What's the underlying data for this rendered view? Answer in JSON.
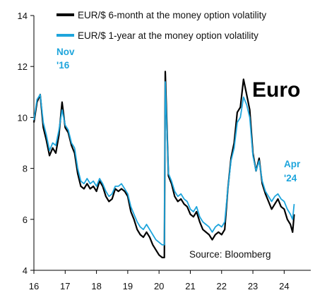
{
  "chart_data": {
    "type": "line",
    "title": "",
    "xlabel": "",
    "ylabel": "",
    "xlim": [
      2016,
      2024.85
    ],
    "ylim": [
      4,
      14
    ],
    "x_ticks": [
      {
        "value": 2016,
        "label": "16"
      },
      {
        "value": 2017,
        "label": "17"
      },
      {
        "value": 2018,
        "label": "18"
      },
      {
        "value": 2019,
        "label": "19"
      },
      {
        "value": 2020,
        "label": "20"
      },
      {
        "value": 2021,
        "label": "21"
      },
      {
        "value": 2022,
        "label": "22"
      },
      {
        "value": 2023,
        "label": "23"
      },
      {
        "value": 2024,
        "label": "24"
      }
    ],
    "y_ticks": [
      4,
      6,
      8,
      10,
      12,
      14
    ],
    "grid": false,
    "legend_position": "top",
    "series": [
      {
        "name": "EUR/$ 6-month at the money option volatility",
        "color": "#000000",
        "points": [
          [
            2016.0,
            9.8
          ],
          [
            2016.1,
            10.6
          ],
          [
            2016.2,
            10.9
          ],
          [
            2016.3,
            9.6
          ],
          [
            2016.4,
            9.1
          ],
          [
            2016.5,
            8.5
          ],
          [
            2016.6,
            8.8
          ],
          [
            2016.7,
            8.6
          ],
          [
            2016.8,
            9.3
          ],
          [
            2016.9,
            10.6
          ],
          [
            2017.0,
            9.6
          ],
          [
            2017.1,
            9.4
          ],
          [
            2017.2,
            8.9
          ],
          [
            2017.3,
            8.6
          ],
          [
            2017.4,
            7.8
          ],
          [
            2017.5,
            7.3
          ],
          [
            2017.6,
            7.2
          ],
          [
            2017.7,
            7.4
          ],
          [
            2017.8,
            7.2
          ],
          [
            2017.9,
            7.3
          ],
          [
            2018.0,
            7.1
          ],
          [
            2018.1,
            7.5
          ],
          [
            2018.2,
            7.3
          ],
          [
            2018.3,
            6.9
          ],
          [
            2018.4,
            6.7
          ],
          [
            2018.5,
            6.8
          ],
          [
            2018.6,
            7.2
          ],
          [
            2018.7,
            7.1
          ],
          [
            2018.8,
            7.2
          ],
          [
            2018.9,
            7.1
          ],
          [
            2019.0,
            6.9
          ],
          [
            2019.1,
            6.3
          ],
          [
            2019.2,
            6.0
          ],
          [
            2019.3,
            5.6
          ],
          [
            2019.4,
            5.4
          ],
          [
            2019.5,
            5.3
          ],
          [
            2019.6,
            5.5
          ],
          [
            2019.7,
            5.3
          ],
          [
            2019.8,
            5.0
          ],
          [
            2019.9,
            4.8
          ],
          [
            2020.0,
            4.6
          ],
          [
            2020.1,
            4.5
          ],
          [
            2020.17,
            4.5
          ],
          [
            2020.2,
            11.8
          ],
          [
            2020.25,
            9.8
          ],
          [
            2020.3,
            7.7
          ],
          [
            2020.4,
            7.4
          ],
          [
            2020.5,
            6.9
          ],
          [
            2020.6,
            6.7
          ],
          [
            2020.7,
            6.8
          ],
          [
            2020.8,
            6.6
          ],
          [
            2020.9,
            6.5
          ],
          [
            2021.0,
            6.2
          ],
          [
            2021.1,
            6.1
          ],
          [
            2021.2,
            6.3
          ],
          [
            2021.3,
            5.9
          ],
          [
            2021.4,
            5.6
          ],
          [
            2021.5,
            5.5
          ],
          [
            2021.6,
            5.4
          ],
          [
            2021.7,
            5.2
          ],
          [
            2021.8,
            5.4
          ],
          [
            2021.9,
            5.5
          ],
          [
            2022.0,
            5.4
          ],
          [
            2022.1,
            5.6
          ],
          [
            2022.2,
            7.2
          ],
          [
            2022.3,
            8.4
          ],
          [
            2022.4,
            9.0
          ],
          [
            2022.5,
            10.2
          ],
          [
            2022.6,
            10.4
          ],
          [
            2022.7,
            11.5
          ],
          [
            2022.8,
            10.9
          ],
          [
            2022.9,
            10.3
          ],
          [
            2023.0,
            8.6
          ],
          [
            2023.1,
            7.9
          ],
          [
            2023.2,
            8.4
          ],
          [
            2023.3,
            7.4
          ],
          [
            2023.4,
            7.0
          ],
          [
            2023.5,
            6.7
          ],
          [
            2023.6,
            6.4
          ],
          [
            2023.7,
            6.6
          ],
          [
            2023.8,
            6.8
          ],
          [
            2023.9,
            6.5
          ],
          [
            2024.0,
            6.4
          ],
          [
            2024.1,
            6.0
          ],
          [
            2024.2,
            5.8
          ],
          [
            2024.27,
            5.5
          ],
          [
            2024.32,
            6.2
          ]
        ]
      },
      {
        "name": "EUR/$ 1-year at the money option volatility",
        "color": "#1ea5dc",
        "points": [
          [
            2016.0,
            9.9
          ],
          [
            2016.1,
            10.7
          ],
          [
            2016.2,
            10.9
          ],
          [
            2016.3,
            9.8
          ],
          [
            2016.4,
            9.3
          ],
          [
            2016.5,
            8.7
          ],
          [
            2016.6,
            9.0
          ],
          [
            2016.7,
            8.9
          ],
          [
            2016.8,
            9.5
          ],
          [
            2016.9,
            10.3
          ],
          [
            2017.0,
            9.7
          ],
          [
            2017.1,
            9.5
          ],
          [
            2017.2,
            9.0
          ],
          [
            2017.3,
            8.8
          ],
          [
            2017.4,
            8.0
          ],
          [
            2017.5,
            7.5
          ],
          [
            2017.6,
            7.4
          ],
          [
            2017.7,
            7.6
          ],
          [
            2017.8,
            7.4
          ],
          [
            2017.9,
            7.5
          ],
          [
            2018.0,
            7.3
          ],
          [
            2018.1,
            7.6
          ],
          [
            2018.2,
            7.4
          ],
          [
            2018.3,
            7.1
          ],
          [
            2018.4,
            6.9
          ],
          [
            2018.5,
            7.0
          ],
          [
            2018.6,
            7.3
          ],
          [
            2018.7,
            7.3
          ],
          [
            2018.8,
            7.4
          ],
          [
            2018.9,
            7.2
          ],
          [
            2019.0,
            7.0
          ],
          [
            2019.1,
            6.5
          ],
          [
            2019.2,
            6.2
          ],
          [
            2019.3,
            5.9
          ],
          [
            2019.4,
            5.7
          ],
          [
            2019.5,
            5.6
          ],
          [
            2019.6,
            5.8
          ],
          [
            2019.7,
            5.6
          ],
          [
            2019.8,
            5.4
          ],
          [
            2019.9,
            5.2
          ],
          [
            2020.0,
            5.1
          ],
          [
            2020.1,
            5.0
          ],
          [
            2020.17,
            5.0
          ],
          [
            2020.2,
            11.4
          ],
          [
            2020.25,
            9.6
          ],
          [
            2020.3,
            7.8
          ],
          [
            2020.4,
            7.5
          ],
          [
            2020.5,
            7.1
          ],
          [
            2020.6,
            6.9
          ],
          [
            2020.7,
            7.0
          ],
          [
            2020.8,
            6.8
          ],
          [
            2020.9,
            6.7
          ],
          [
            2021.0,
            6.4
          ],
          [
            2021.1,
            6.3
          ],
          [
            2021.2,
            6.5
          ],
          [
            2021.3,
            6.1
          ],
          [
            2021.4,
            5.9
          ],
          [
            2021.5,
            5.8
          ],
          [
            2021.6,
            5.7
          ],
          [
            2021.7,
            5.5
          ],
          [
            2021.8,
            5.7
          ],
          [
            2021.9,
            5.8
          ],
          [
            2022.0,
            5.7
          ],
          [
            2022.1,
            5.9
          ],
          [
            2022.2,
            7.2
          ],
          [
            2022.3,
            8.3
          ],
          [
            2022.4,
            8.8
          ],
          [
            2022.5,
            9.8
          ],
          [
            2022.6,
            10.0
          ],
          [
            2022.7,
            10.8
          ],
          [
            2022.8,
            10.5
          ],
          [
            2022.9,
            10.0
          ],
          [
            2023.0,
            8.5
          ],
          [
            2023.1,
            7.9
          ],
          [
            2023.2,
            8.3
          ],
          [
            2023.3,
            7.5
          ],
          [
            2023.4,
            7.1
          ],
          [
            2023.5,
            6.9
          ],
          [
            2023.6,
            6.7
          ],
          [
            2023.7,
            6.9
          ],
          [
            2023.8,
            7.0
          ],
          [
            2023.9,
            6.8
          ],
          [
            2024.0,
            6.7
          ],
          [
            2024.1,
            6.4
          ],
          [
            2024.2,
            6.2
          ],
          [
            2024.27,
            6.0
          ],
          [
            2024.32,
            6.6
          ]
        ]
      }
    ],
    "annotations": [
      {
        "text": "Nov",
        "color": "#1ea5dc"
      },
      {
        "text": "'16",
        "color": "#1ea5dc"
      },
      {
        "text": "Apr",
        "color": "#1ea5dc"
      },
      {
        "text": "'24",
        "color": "#1ea5dc"
      }
    ],
    "big_label": "Euro",
    "source": "Source: Bloomberg"
  }
}
